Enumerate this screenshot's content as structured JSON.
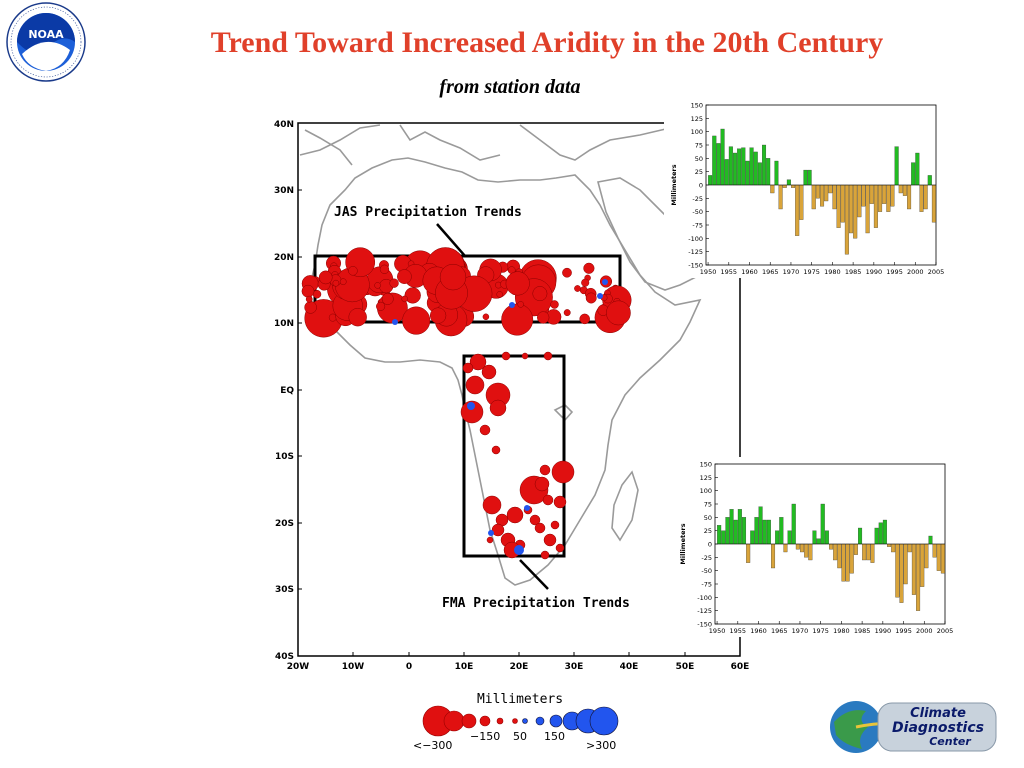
{
  "header": {
    "title": "Trend Toward Increased Aridity in the 20th Century",
    "subtitle": "from station data"
  },
  "logos": {
    "noaa": {
      "center_text": "NOAA",
      "ring_text": "NATIONAL OCEANIC AND ATMOSPHERIC ADMINISTRATION · U.S. DEPARTMENT OF COMMERCE"
    },
    "cdc": {
      "line1": "Climate",
      "line2": "Diagnostics",
      "line3": "Center"
    }
  },
  "map": {
    "lat_labels": [
      "40N",
      "30N",
      "20N",
      "10N",
      "EQ",
      "10S",
      "20S",
      "30S",
      "40S"
    ],
    "lon_labels": [
      "20W",
      "10W",
      "0",
      "10E",
      "20E",
      "30E",
      "40E",
      "50E",
      "60E"
    ],
    "jas_label": "JAS Precipitation Trends",
    "fma_label": "FMA Precipitation Trends",
    "legend_title": "Millimeters",
    "legend_labels": [
      "<−300",
      "−150",
      "50",
      "150",
      ">300"
    ]
  },
  "chart_data": [
    {
      "type": "bar",
      "title": "JAS Precipitation Trends",
      "ylabel": "Millimeters",
      "ylim": [
        -150,
        150
      ],
      "yticks": [
        150,
        125,
        100,
        75,
        50,
        25,
        0,
        -25,
        -50,
        -75,
        -100,
        -125,
        -150
      ],
      "xticks": [
        1950,
        1955,
        1960,
        1965,
        1970,
        1975,
        1980,
        1985,
        1990,
        1995,
        2000,
        2005
      ],
      "x": [
        1950,
        1951,
        1952,
        1953,
        1954,
        1955,
        1956,
        1957,
        1958,
        1959,
        1960,
        1961,
        1962,
        1963,
        1964,
        1965,
        1966,
        1967,
        1968,
        1969,
        1970,
        1971,
        1972,
        1973,
        1974,
        1975,
        1976,
        1977,
        1978,
        1979,
        1980,
        1981,
        1982,
        1983,
        1984,
        1985,
        1986,
        1987,
        1988,
        1989,
        1990,
        1991,
        1992,
        1993,
        1994,
        1995,
        1996,
        1997,
        1998,
        1999,
        2000,
        2001,
        2002,
        2003,
        2004
      ],
      "values": [
        18,
        92,
        78,
        105,
        48,
        72,
        60,
        68,
        70,
        45,
        70,
        62,
        42,
        75,
        50,
        -15,
        45,
        -45,
        -5,
        10,
        -5,
        -95,
        -65,
        28,
        28,
        -45,
        -25,
        -40,
        -30,
        -15,
        -45,
        -80,
        -70,
        -130,
        -90,
        -100,
        -60,
        -40,
        -90,
        -35,
        -80,
        -50,
        -35,
        -50,
        -40,
        72,
        -15,
        -20,
        -45,
        42,
        60,
        -50,
        -45,
        18,
        -70
      ],
      "colors": {
        "positive": "#22bb22",
        "negative": "#d9a43a"
      }
    },
    {
      "type": "bar",
      "title": "FMA Precipitation Trends",
      "ylabel": "Millimeters",
      "ylim": [
        -150,
        150
      ],
      "yticks": [
        150,
        125,
        100,
        75,
        50,
        25,
        0,
        -25,
        -50,
        -75,
        -100,
        -125,
        -150
      ],
      "xticks": [
        1950,
        1955,
        1960,
        1965,
        1970,
        1975,
        1980,
        1985,
        1990,
        1995,
        2000,
        2005
      ],
      "x": [
        1950,
        1951,
        1952,
        1953,
        1954,
        1955,
        1956,
        1957,
        1958,
        1959,
        1960,
        1961,
        1962,
        1963,
        1964,
        1965,
        1966,
        1967,
        1968,
        1969,
        1970,
        1971,
        1972,
        1973,
        1974,
        1975,
        1976,
        1977,
        1978,
        1979,
        1980,
        1981,
        1982,
        1983,
        1984,
        1985,
        1986,
        1987,
        1988,
        1989,
        1990,
        1991,
        1992,
        1993,
        1994,
        1995,
        1996,
        1997,
        1998,
        1999,
        2000,
        2001,
        2002,
        2003,
        2004
      ],
      "values": [
        35,
        25,
        50,
        65,
        45,
        65,
        50,
        -35,
        25,
        50,
        70,
        45,
        45,
        -45,
        25,
        50,
        -15,
        25,
        75,
        -10,
        -15,
        -25,
        -30,
        25,
        10,
        75,
        25,
        -10,
        -30,
        -45,
        -70,
        -70,
        -55,
        -20,
        30,
        -30,
        -30,
        -35,
        30,
        40,
        45,
        -5,
        -15,
        -100,
        -110,
        -75,
        -15,
        -95,
        -125,
        -80,
        -45,
        15,
        -25,
        -50,
        -55
      ],
      "colors": {
        "positive": "#22bb22",
        "negative": "#d9a43a"
      }
    }
  ]
}
